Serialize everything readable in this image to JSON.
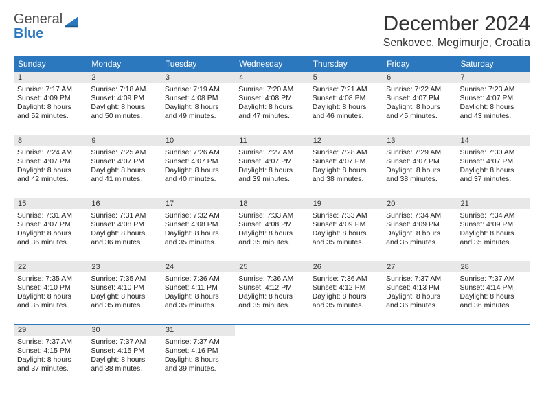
{
  "logo": {
    "general": "General",
    "blue": "Blue"
  },
  "header": {
    "title": "December 2024",
    "subtitle": "Senkovec, Megimurje, Croatia"
  },
  "colors": {
    "accent": "#2b78bf",
    "header_bg": "#2b78bf",
    "daynum_bg": "#e8e8e8",
    "border": "#2b78bf",
    "text": "#222222",
    "background": "#ffffff"
  },
  "daysOfWeek": [
    "Sunday",
    "Monday",
    "Tuesday",
    "Wednesday",
    "Thursday",
    "Friday",
    "Saturday"
  ],
  "weeks": [
    [
      {
        "n": "1",
        "sr": "Sunrise: 7:17 AM",
        "ss": "Sunset: 4:09 PM",
        "dl": "Daylight: 8 hours and 52 minutes."
      },
      {
        "n": "2",
        "sr": "Sunrise: 7:18 AM",
        "ss": "Sunset: 4:09 PM",
        "dl": "Daylight: 8 hours and 50 minutes."
      },
      {
        "n": "3",
        "sr": "Sunrise: 7:19 AM",
        "ss": "Sunset: 4:08 PM",
        "dl": "Daylight: 8 hours and 49 minutes."
      },
      {
        "n": "4",
        "sr": "Sunrise: 7:20 AM",
        "ss": "Sunset: 4:08 PM",
        "dl": "Daylight: 8 hours and 47 minutes."
      },
      {
        "n": "5",
        "sr": "Sunrise: 7:21 AM",
        "ss": "Sunset: 4:08 PM",
        "dl": "Daylight: 8 hours and 46 minutes."
      },
      {
        "n": "6",
        "sr": "Sunrise: 7:22 AM",
        "ss": "Sunset: 4:07 PM",
        "dl": "Daylight: 8 hours and 45 minutes."
      },
      {
        "n": "7",
        "sr": "Sunrise: 7:23 AM",
        "ss": "Sunset: 4:07 PM",
        "dl": "Daylight: 8 hours and 43 minutes."
      }
    ],
    [
      {
        "n": "8",
        "sr": "Sunrise: 7:24 AM",
        "ss": "Sunset: 4:07 PM",
        "dl": "Daylight: 8 hours and 42 minutes."
      },
      {
        "n": "9",
        "sr": "Sunrise: 7:25 AM",
        "ss": "Sunset: 4:07 PM",
        "dl": "Daylight: 8 hours and 41 minutes."
      },
      {
        "n": "10",
        "sr": "Sunrise: 7:26 AM",
        "ss": "Sunset: 4:07 PM",
        "dl": "Daylight: 8 hours and 40 minutes."
      },
      {
        "n": "11",
        "sr": "Sunrise: 7:27 AM",
        "ss": "Sunset: 4:07 PM",
        "dl": "Daylight: 8 hours and 39 minutes."
      },
      {
        "n": "12",
        "sr": "Sunrise: 7:28 AM",
        "ss": "Sunset: 4:07 PM",
        "dl": "Daylight: 8 hours and 38 minutes."
      },
      {
        "n": "13",
        "sr": "Sunrise: 7:29 AM",
        "ss": "Sunset: 4:07 PM",
        "dl": "Daylight: 8 hours and 38 minutes."
      },
      {
        "n": "14",
        "sr": "Sunrise: 7:30 AM",
        "ss": "Sunset: 4:07 PM",
        "dl": "Daylight: 8 hours and 37 minutes."
      }
    ],
    [
      {
        "n": "15",
        "sr": "Sunrise: 7:31 AM",
        "ss": "Sunset: 4:07 PM",
        "dl": "Daylight: 8 hours and 36 minutes."
      },
      {
        "n": "16",
        "sr": "Sunrise: 7:31 AM",
        "ss": "Sunset: 4:08 PM",
        "dl": "Daylight: 8 hours and 36 minutes."
      },
      {
        "n": "17",
        "sr": "Sunrise: 7:32 AM",
        "ss": "Sunset: 4:08 PM",
        "dl": "Daylight: 8 hours and 35 minutes."
      },
      {
        "n": "18",
        "sr": "Sunrise: 7:33 AM",
        "ss": "Sunset: 4:08 PM",
        "dl": "Daylight: 8 hours and 35 minutes."
      },
      {
        "n": "19",
        "sr": "Sunrise: 7:33 AM",
        "ss": "Sunset: 4:09 PM",
        "dl": "Daylight: 8 hours and 35 minutes."
      },
      {
        "n": "20",
        "sr": "Sunrise: 7:34 AM",
        "ss": "Sunset: 4:09 PM",
        "dl": "Daylight: 8 hours and 35 minutes."
      },
      {
        "n": "21",
        "sr": "Sunrise: 7:34 AM",
        "ss": "Sunset: 4:09 PM",
        "dl": "Daylight: 8 hours and 35 minutes."
      }
    ],
    [
      {
        "n": "22",
        "sr": "Sunrise: 7:35 AM",
        "ss": "Sunset: 4:10 PM",
        "dl": "Daylight: 8 hours and 35 minutes."
      },
      {
        "n": "23",
        "sr": "Sunrise: 7:35 AM",
        "ss": "Sunset: 4:10 PM",
        "dl": "Daylight: 8 hours and 35 minutes."
      },
      {
        "n": "24",
        "sr": "Sunrise: 7:36 AM",
        "ss": "Sunset: 4:11 PM",
        "dl": "Daylight: 8 hours and 35 minutes."
      },
      {
        "n": "25",
        "sr": "Sunrise: 7:36 AM",
        "ss": "Sunset: 4:12 PM",
        "dl": "Daylight: 8 hours and 35 minutes."
      },
      {
        "n": "26",
        "sr": "Sunrise: 7:36 AM",
        "ss": "Sunset: 4:12 PM",
        "dl": "Daylight: 8 hours and 35 minutes."
      },
      {
        "n": "27",
        "sr": "Sunrise: 7:37 AM",
        "ss": "Sunset: 4:13 PM",
        "dl": "Daylight: 8 hours and 36 minutes."
      },
      {
        "n": "28",
        "sr": "Sunrise: 7:37 AM",
        "ss": "Sunset: 4:14 PM",
        "dl": "Daylight: 8 hours and 36 minutes."
      }
    ],
    [
      {
        "n": "29",
        "sr": "Sunrise: 7:37 AM",
        "ss": "Sunset: 4:15 PM",
        "dl": "Daylight: 8 hours and 37 minutes."
      },
      {
        "n": "30",
        "sr": "Sunrise: 7:37 AM",
        "ss": "Sunset: 4:15 PM",
        "dl": "Daylight: 8 hours and 38 minutes."
      },
      {
        "n": "31",
        "sr": "Sunrise: 7:37 AM",
        "ss": "Sunset: 4:16 PM",
        "dl": "Daylight: 8 hours and 39 minutes."
      },
      null,
      null,
      null,
      null
    ]
  ]
}
